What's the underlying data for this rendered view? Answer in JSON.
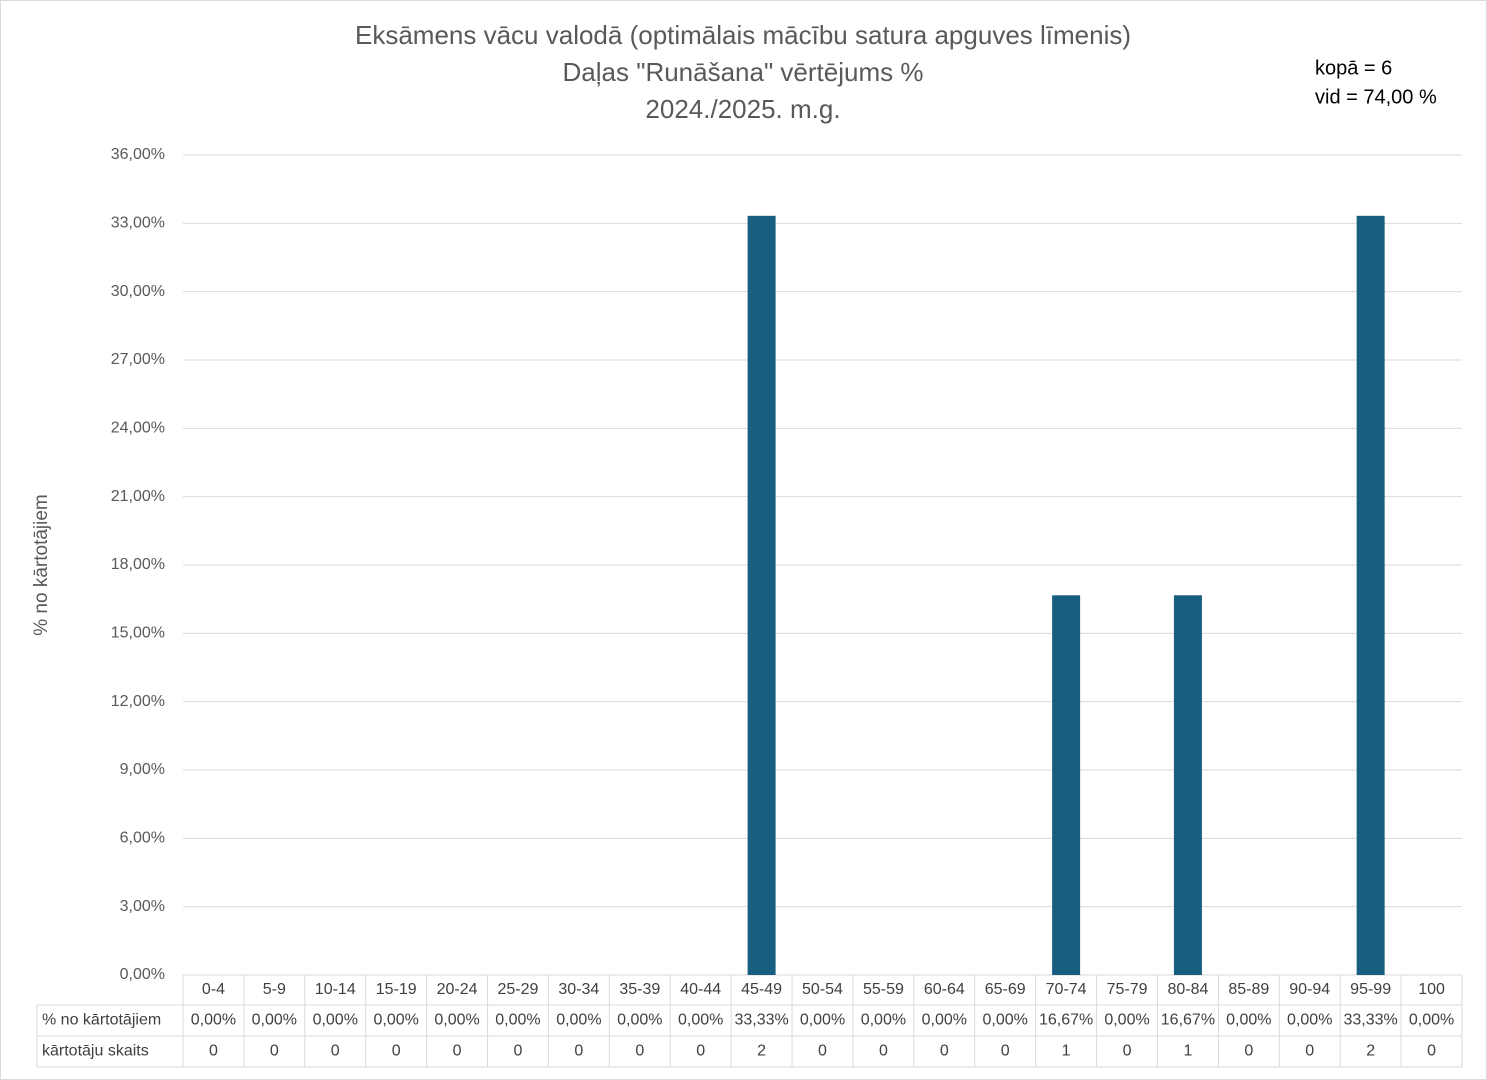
{
  "chart_data": {
    "type": "bar",
    "title": [
      "Eksāmens vācu valodā (optimālais mācību satura apguves līmenis)",
      "Daļas \"Runāšana\" vērtējums %",
      "2024./2025. m.g."
    ],
    "annotations": [
      "kopā = 6",
      "vid = 74,00 %"
    ],
    "y_label": "% no kārtotājiem",
    "categories": [
      "0-4",
      "5-9",
      "10-14",
      "15-19",
      "20-24",
      "25-29",
      "30-34",
      "35-39",
      "40-44",
      "45-49",
      "50-54",
      "55-59",
      "60-64",
      "65-69",
      "70-74",
      "75-79",
      "80-84",
      "85-89",
      "90-94",
      "95-99",
      "100"
    ],
    "series": [
      {
        "name": "% no kārtotājiem",
        "color": "#175e80",
        "values": [
          0,
          0,
          0,
          0,
          0,
          0,
          0,
          0,
          0,
          33.33,
          0,
          0,
          0,
          0,
          16.67,
          0,
          16.67,
          0,
          0,
          33.33,
          0
        ],
        "value_labels": [
          "0,00%",
          "0,00%",
          "0,00%",
          "0,00%",
          "0,00%",
          "0,00%",
          "0,00%",
          "0,00%",
          "0,00%",
          "33,33%",
          "0,00%",
          "0,00%",
          "0,00%",
          "0,00%",
          "16,67%",
          "0,00%",
          "16,67%",
          "0,00%",
          "0,00%",
          "33,33%",
          "0,00%"
        ]
      }
    ],
    "count_row": {
      "name": "kārtotāju skaits",
      "values": [
        0,
        0,
        0,
        0,
        0,
        0,
        0,
        0,
        0,
        2,
        0,
        0,
        0,
        0,
        1,
        0,
        1,
        0,
        0,
        2,
        0
      ]
    },
    "ylim": [
      0,
      36
    ],
    "yticks": [
      {
        "value": 0,
        "label": "0,00%"
      },
      {
        "value": 3,
        "label": "3,00%"
      },
      {
        "value": 6,
        "label": "6,00%"
      },
      {
        "value": 9,
        "label": "9,00%"
      },
      {
        "value": 12,
        "label": "12,00%"
      },
      {
        "value": 15,
        "label": "15,00%"
      },
      {
        "value": 18,
        "label": "18,00%"
      },
      {
        "value": 21,
        "label": "21,00%"
      },
      {
        "value": 24,
        "label": "24,00%"
      },
      {
        "value": 27,
        "label": "27,00%"
      },
      {
        "value": 30,
        "label": "30,00%"
      },
      {
        "value": 33,
        "label": "33,00%"
      },
      {
        "value": 36,
        "label": "36,00%"
      }
    ],
    "grid": true
  }
}
